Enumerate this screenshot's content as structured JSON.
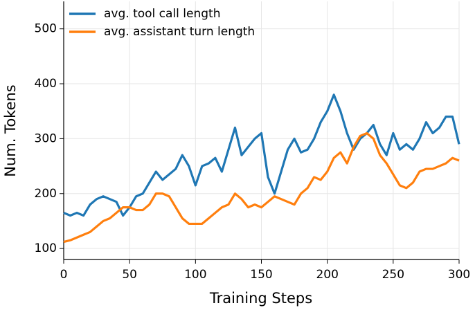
{
  "chart_data": {
    "type": "line",
    "x_label": "Training Steps",
    "y_label": "Num. Tokens",
    "x": [
      0,
      5,
      10,
      15,
      20,
      25,
      30,
      35,
      40,
      45,
      50,
      55,
      60,
      65,
      70,
      75,
      80,
      85,
      90,
      95,
      100,
      105,
      110,
      115,
      120,
      125,
      130,
      135,
      140,
      145,
      150,
      155,
      160,
      165,
      170,
      175,
      180,
      185,
      190,
      195,
      200,
      205,
      210,
      215,
      220,
      225,
      230,
      235,
      240,
      245,
      250,
      255,
      260,
      265,
      270,
      275,
      280,
      285,
      290,
      295,
      300
    ],
    "series": [
      {
        "name": "avg. tool call length",
        "color": "#1f77b4",
        "values": [
          165,
          160,
          165,
          160,
          180,
          190,
          195,
          190,
          185,
          160,
          175,
          195,
          200,
          220,
          240,
          225,
          235,
          245,
          270,
          250,
          215,
          250,
          255,
          265,
          240,
          280,
          320,
          270,
          285,
          300,
          310,
          230,
          200,
          240,
          280,
          300,
          275,
          280,
          300,
          330,
          350,
          380,
          350,
          310,
          280,
          300,
          310,
          325,
          290,
          270,
          310,
          280,
          290,
          280,
          300,
          330,
          310,
          320,
          340,
          340,
          290
        ]
      },
      {
        "name": "avg. assistant turn length",
        "color": "#ff7f0e",
        "values": [
          112,
          115,
          120,
          125,
          130,
          140,
          150,
          155,
          165,
          175,
          175,
          170,
          170,
          180,
          200,
          200,
          195,
          175,
          155,
          145,
          145,
          145,
          155,
          165,
          175,
          180,
          200,
          190,
          175,
          180,
          175,
          185,
          195,
          190,
          185,
          180,
          200,
          210,
          230,
          225,
          240,
          265,
          275,
          255,
          285,
          305,
          310,
          300,
          270,
          255,
          235,
          215,
          210,
          220,
          240,
          245,
          245,
          250,
          255,
          265,
          260
        ]
      }
    ],
    "xlim": [
      0,
      300
    ],
    "ylim": [
      80,
      550
    ],
    "xticks": [
      0,
      50,
      100,
      150,
      200,
      250,
      300
    ],
    "yticks": [
      100,
      200,
      300,
      400,
      500
    ],
    "grid": true,
    "legend": "upper left"
  }
}
